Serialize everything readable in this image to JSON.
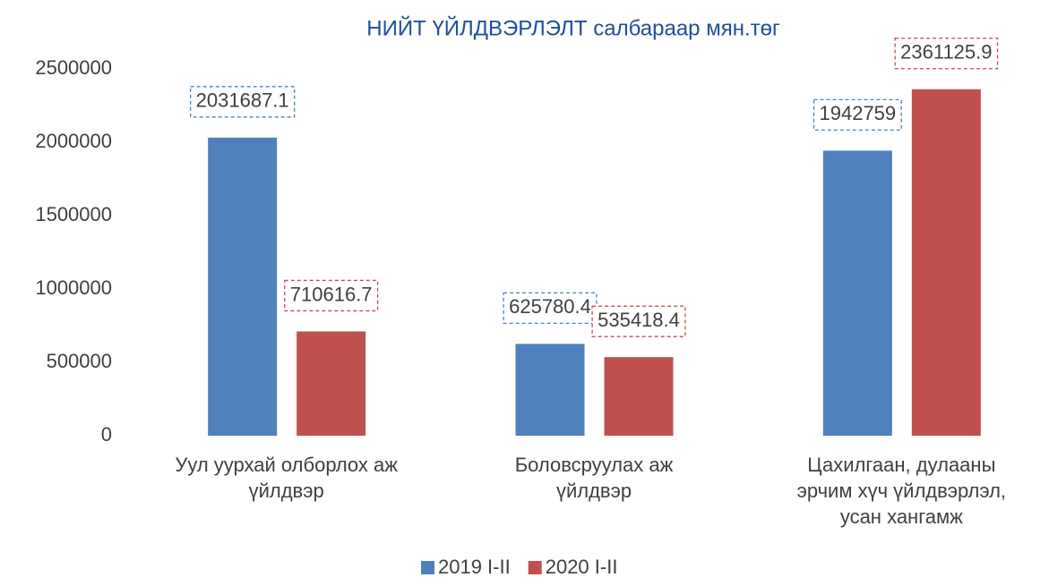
{
  "chart_data": {
    "type": "bar",
    "title": "НИЙТ ҮЙЛДВЭРЛЭЛТ салбараар мян.төг",
    "categories": [
      "Уул уурхай олборлох аж үйлдвэр",
      "Боловсруулах аж үйлдвэр",
      "Цахилгаан, дулааны эрчим хүч үйлдвэрлэл, усан хангамж"
    ],
    "series": [
      {
        "name": "2019 I-II",
        "color": "#4f81bd",
        "values": [
          2031687.1,
          625780.4,
          1942759
        ]
      },
      {
        "name": "2020 I-II",
        "color": "#c0504d",
        "values": [
          710616.7,
          535418.4,
          2361125.9
        ]
      }
    ],
    "ylim": [
      0,
      2500000
    ],
    "yticks": [
      0,
      500000,
      1000000,
      1500000,
      2000000,
      2500000
    ],
    "grid": false,
    "legend": "bottom"
  }
}
